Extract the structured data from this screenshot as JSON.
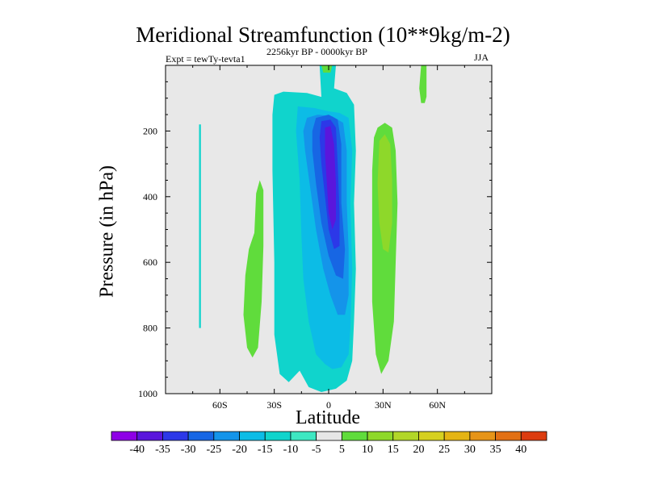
{
  "chart_data": {
    "type": "heatmap",
    "title": "Meridional Streamfunction (10**9kg/m-2)",
    "left_subtitle": "Expt = tewTy-tevta1",
    "center_subtitle": "2256kyr BP - 0000kyr BP",
    "right_subtitle": "JJA",
    "xlabel": "Latitude",
    "ylabel": "Pressure (in hPa)",
    "x_ticks": [
      {
        "value": -60,
        "label": "60S"
      },
      {
        "value": -30,
        "label": "30S"
      },
      {
        "value": 0,
        "label": "0"
      },
      {
        "value": 30,
        "label": "30N"
      },
      {
        "value": 60,
        "label": "60N"
      }
    ],
    "y_ticks": [
      {
        "value": 200,
        "label": "200"
      },
      {
        "value": 400,
        "label": "400"
      },
      {
        "value": 600,
        "label": "600"
      },
      {
        "value": 800,
        "label": "800"
      },
      {
        "value": 1000,
        "label": "1000"
      }
    ],
    "xlim": [
      -90,
      90
    ],
    "ylim": [
      1000,
      0
    ],
    "background_color": "#e8e8e8",
    "levels": [
      -40,
      -35,
      -30,
      -25,
      -20,
      -15,
      -10,
      -5,
      5,
      10,
      15,
      20,
      25,
      30,
      35,
      40
    ],
    "level_labels": [
      "-40",
      "-35",
      "-30",
      "-25",
      "-20",
      "-15",
      "-10",
      "-5",
      "5",
      "10",
      "15",
      "20",
      "25",
      "30",
      "35",
      "40"
    ],
    "colors": [
      "#8e00e6",
      "#5a16dc",
      "#2c38e8",
      "#1766e4",
      "#1494ea",
      "#0cbce6",
      "#10d4cc",
      "#3ee8c2",
      "#e6e6e6",
      "#60dc3c",
      "#8ed82a",
      "#b2d628",
      "#d6d020",
      "#e4b414",
      "#e69418",
      "#e27014",
      "#dc3c10"
    ],
    "regions": [
      {
        "name": "neg-10-main",
        "level": -10,
        "points": [
          [
            -30,
            90
          ],
          [
            -25,
            80
          ],
          [
            -12,
            84
          ],
          [
            -4,
            96
          ],
          [
            -5,
            0
          ],
          [
            4,
            0
          ],
          [
            3,
            70
          ],
          [
            10,
            84
          ],
          [
            14,
            120
          ],
          [
            15,
            260
          ],
          [
            14,
            420
          ],
          [
            15,
            620
          ],
          [
            14,
            780
          ],
          [
            13,
            900
          ],
          [
            10,
            960
          ],
          [
            4,
            985
          ],
          [
            -4,
            995
          ],
          [
            -11,
            980
          ],
          [
            -16,
            930
          ],
          [
            -22,
            965
          ],
          [
            -27,
            940
          ],
          [
            -30,
            820
          ],
          [
            -30,
            600
          ],
          [
            -31,
            320
          ],
          [
            -31,
            150
          ]
        ]
      },
      {
        "name": "neg-10-streak",
        "level": -10,
        "points": [
          [
            -71.5,
            180
          ],
          [
            -70.5,
            180
          ],
          [
            -70.5,
            800
          ],
          [
            -71.5,
            800
          ]
        ]
      },
      {
        "name": "neg-15-core",
        "level": -15,
        "points": [
          [
            -17,
            125
          ],
          [
            -8,
            130
          ],
          [
            0,
            140
          ],
          [
            6,
            145
          ],
          [
            11,
            160
          ],
          [
            13,
            260
          ],
          [
            12,
            420
          ],
          [
            13,
            620
          ],
          [
            12,
            800
          ],
          [
            11,
            880
          ],
          [
            7,
            920
          ],
          [
            2,
            925
          ],
          [
            -2,
            910
          ],
          [
            -7,
            880
          ],
          [
            -11,
            780
          ],
          [
            -14,
            650
          ],
          [
            -15,
            520
          ],
          [
            -16,
            350
          ],
          [
            -18,
            200
          ]
        ]
      },
      {
        "name": "neg-20",
        "level": -20,
        "points": [
          [
            -12,
            160
          ],
          [
            -6,
            150
          ],
          [
            2,
            155
          ],
          [
            8,
            175
          ],
          [
            10,
            260
          ],
          [
            10,
            420
          ],
          [
            11,
            560
          ],
          [
            11,
            700
          ],
          [
            9,
            760
          ],
          [
            5,
            760
          ],
          [
            1,
            700
          ],
          [
            -3,
            620
          ],
          [
            -7,
            500
          ],
          [
            -10,
            380
          ],
          [
            -13,
            260
          ],
          [
            -14,
            200
          ]
        ]
      },
      {
        "name": "neg-25",
        "level": -25,
        "points": [
          [
            -7,
            160
          ],
          [
            0,
            150
          ],
          [
            5,
            165
          ],
          [
            7,
            240
          ],
          [
            7,
            420
          ],
          [
            9,
            560
          ],
          [
            8,
            650
          ],
          [
            4,
            640
          ],
          [
            0,
            580
          ],
          [
            -4,
            480
          ],
          [
            -7,
            360
          ],
          [
            -9,
            260
          ],
          [
            -9,
            200
          ]
        ]
      },
      {
        "name": "neg-30",
        "level": -30,
        "points": [
          [
            -4,
            170
          ],
          [
            1,
            165
          ],
          [
            4,
            190
          ],
          [
            5,
            300
          ],
          [
            6,
            450
          ],
          [
            6,
            550
          ],
          [
            3,
            560
          ],
          [
            0,
            500
          ],
          [
            -2,
            400
          ],
          [
            -4,
            300
          ],
          [
            -5,
            220
          ]
        ]
      },
      {
        "name": "neg-35",
        "level": -35,
        "points": [
          [
            -2,
            190
          ],
          [
            1,
            185
          ],
          [
            3,
            240
          ],
          [
            4,
            360
          ],
          [
            4,
            470
          ],
          [
            2,
            500
          ],
          [
            0,
            450
          ],
          [
            -1,
            360
          ],
          [
            -2,
            270
          ]
        ]
      },
      {
        "name": "pos-5-north",
        "level": 5,
        "points": [
          [
            25,
            220
          ],
          [
            27,
            190
          ],
          [
            31,
            175
          ],
          [
            35,
            190
          ],
          [
            37,
            260
          ],
          [
            38,
            420
          ],
          [
            37,
            600
          ],
          [
            36,
            780
          ],
          [
            33,
            900
          ],
          [
            29,
            940
          ],
          [
            26,
            880
          ],
          [
            24,
            720
          ],
          [
            24,
            500
          ],
          [
            24,
            320
          ]
        ]
      },
      {
        "name": "pos-10-north",
        "level": 10,
        "points": [
          [
            28,
            230
          ],
          [
            31,
            210
          ],
          [
            34,
            240
          ],
          [
            35,
            350
          ],
          [
            35,
            480
          ],
          [
            33,
            570
          ],
          [
            30,
            560
          ],
          [
            28,
            480
          ],
          [
            27,
            360
          ]
        ]
      },
      {
        "name": "pos-5-south",
        "level": 5,
        "points": [
          [
            -41,
            510
          ],
          [
            -40,
            390
          ],
          [
            -38,
            350
          ],
          [
            -36,
            380
          ],
          [
            -36,
            550
          ],
          [
            -37,
            720
          ],
          [
            -39,
            860
          ],
          [
            -42,
            890
          ],
          [
            -45,
            860
          ],
          [
            -47,
            760
          ],
          [
            -46,
            640
          ],
          [
            -44,
            560
          ]
        ]
      },
      {
        "name": "pos-5-top-north",
        "level": 5,
        "points": [
          [
            51,
            0
          ],
          [
            54,
            0
          ],
          [
            54,
            95
          ],
          [
            53,
            115
          ],
          [
            51,
            115
          ],
          [
            50,
            70
          ]
        ]
      },
      {
        "name": "pos-5-top-center",
        "level": 5,
        "points": [
          [
            -4,
            0
          ],
          [
            2,
            0
          ],
          [
            1,
            22
          ],
          [
            -3,
            22
          ]
        ]
      }
    ]
  }
}
